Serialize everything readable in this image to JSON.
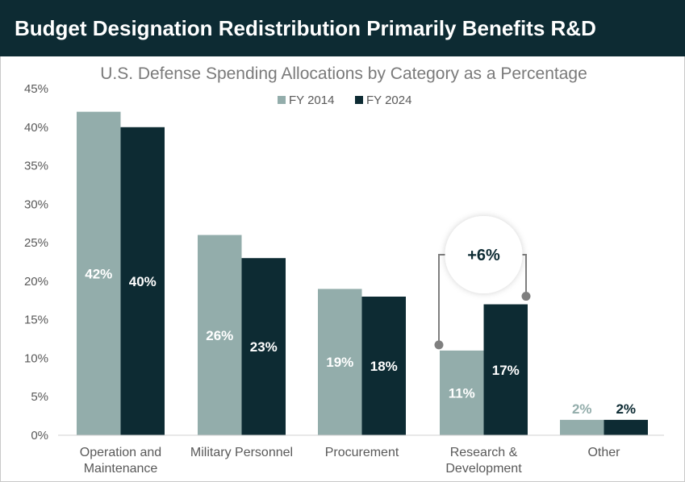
{
  "header": {
    "title": "Budget Designation Redistribution Primarily Benefits R&D"
  },
  "colors": {
    "fy2014": "#93adab",
    "fy2024": "#0d2b33",
    "annotation": "#7f7f7f"
  },
  "chart_data": {
    "type": "bar",
    "title": "U.S. Defense Spending Allocations by Category as a Percentage",
    "categories": [
      [
        "Operation and",
        "Maintenance"
      ],
      [
        "Military Personnel"
      ],
      [
        "Procurement"
      ],
      [
        "Research &",
        "Development"
      ],
      [
        "Other"
      ]
    ],
    "series": [
      {
        "name": "FY 2014",
        "values": [
          42,
          26,
          19,
          11,
          2
        ],
        "labels": [
          "42%",
          "26%",
          "19%",
          "11%",
          "2%"
        ]
      },
      {
        "name": "FY 2024",
        "values": [
          40,
          23,
          18,
          17,
          2
        ],
        "labels": [
          "40%",
          "23%",
          "18%",
          "17%",
          "2%"
        ]
      }
    ],
    "ylim": [
      0,
      45
    ],
    "yticks": [
      "0%",
      "5%",
      "10%",
      "15%",
      "20%",
      "25%",
      "30%",
      "35%",
      "40%",
      "45%"
    ],
    "legend": "top-center",
    "annotation": {
      "text": "+6%",
      "category_index": 3
    }
  }
}
